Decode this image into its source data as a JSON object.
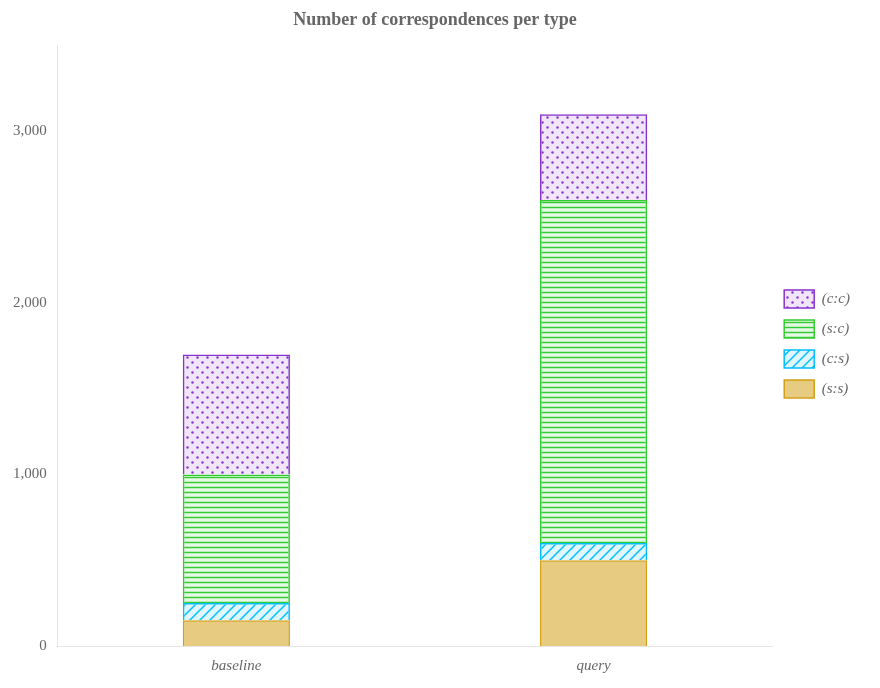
{
  "chart_data": {
    "type": "bar",
    "stacked": true,
    "title": "Number of correspondences per type",
    "categories": [
      "baseline",
      "query"
    ],
    "series": [
      {
        "name": "(s:s)",
        "color": "#D4A017",
        "values": [
          150,
          500
        ]
      },
      {
        "name": "(c:s)",
        "color": "#00BFFF",
        "values": [
          100,
          100
        ]
      },
      {
        "name": "(s:c)",
        "color": "#33CC33",
        "values": [
          750,
          2000
        ]
      },
      {
        "name": "(c:c)",
        "color": "#8833CC",
        "values": [
          700,
          500
        ]
      }
    ],
    "ylim": [
      0,
      3500
    ],
    "yticks": [
      0,
      {
        "value": 1000,
        "label": "1,000"
      },
      {
        "value": 2000,
        "label": "2,000"
      },
      {
        "value": 3000,
        "label": "3,000"
      }
    ],
    "grid": false,
    "legend": "right"
  }
}
